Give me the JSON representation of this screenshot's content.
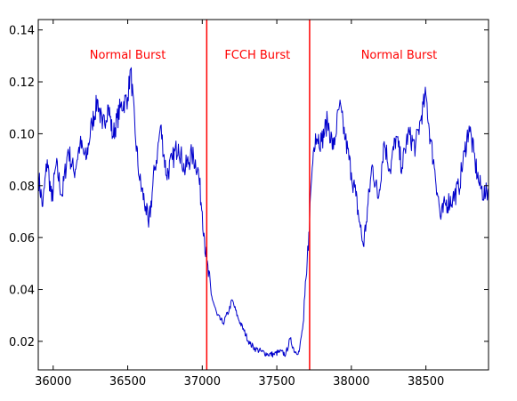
{
  "chart_data": {
    "type": "line",
    "title": "",
    "xlabel": "",
    "ylabel": "",
    "xlim": [
      35900,
      38920
    ],
    "ylim": [
      0.009,
      0.144
    ],
    "x_ticks": [
      36000,
      36500,
      37000,
      37500,
      38000,
      38500
    ],
    "x_tick_labels": [
      "36000",
      "36500",
      "37000",
      "37500",
      "38000",
      "38500"
    ],
    "y_ticks": [
      0.02,
      0.04,
      0.06,
      0.08,
      0.1,
      0.12,
      0.14
    ],
    "y_tick_labels": [
      "0.02",
      "0.04",
      "0.06",
      "0.08",
      "0.10",
      "0.12",
      "0.14"
    ],
    "grid": false,
    "line_color": "#0000cc",
    "marker_color": "#ff0000",
    "vertical_lines": [
      37030,
      37720
    ],
    "annotations": [
      {
        "text": "Normal Burst",
        "x": 36500,
        "y": 0.129
      },
      {
        "text": "FCCH Burst",
        "x": 37370,
        "y": 0.129
      },
      {
        "text": "Normal Burst",
        "x": 38320,
        "y": 0.129
      }
    ],
    "series": [
      {
        "keypoints": [
          [
            35900,
            0.084
          ],
          [
            35930,
            0.072
          ],
          [
            35960,
            0.09
          ],
          [
            35990,
            0.074
          ],
          [
            36020,
            0.088
          ],
          [
            36060,
            0.076
          ],
          [
            36100,
            0.094
          ],
          [
            36140,
            0.085
          ],
          [
            36180,
            0.096
          ],
          [
            36220,
            0.09
          ],
          [
            36260,
            0.104
          ],
          [
            36300,
            0.113
          ],
          [
            36330,
            0.102
          ],
          [
            36370,
            0.111
          ],
          [
            36400,
            0.099
          ],
          [
            36450,
            0.11
          ],
          [
            36500,
            0.114
          ],
          [
            36520,
            0.125
          ],
          [
            36550,
            0.1
          ],
          [
            36580,
            0.082
          ],
          [
            36620,
            0.072
          ],
          [
            36640,
            0.064
          ],
          [
            36680,
            0.086
          ],
          [
            36700,
            0.093
          ],
          [
            36720,
            0.103
          ],
          [
            36760,
            0.084
          ],
          [
            36800,
            0.09
          ],
          [
            36840,
            0.096
          ],
          [
            36880,
            0.086
          ],
          [
            36930,
            0.092
          ],
          [
            36970,
            0.087
          ],
          [
            37000,
            0.07
          ],
          [
            37015,
            0.06
          ],
          [
            37030,
            0.05
          ],
          [
            37060,
            0.038
          ],
          [
            37100,
            0.03
          ],
          [
            37140,
            0.027
          ],
          [
            37180,
            0.032
          ],
          [
            37200,
            0.036
          ],
          [
            37240,
            0.029
          ],
          [
            37280,
            0.024
          ],
          [
            37320,
            0.019
          ],
          [
            37360,
            0.017
          ],
          [
            37400,
            0.016
          ],
          [
            37440,
            0.015
          ],
          [
            37480,
            0.015
          ],
          [
            37520,
            0.016
          ],
          [
            37560,
            0.015
          ],
          [
            37590,
            0.021
          ],
          [
            37620,
            0.016
          ],
          [
            37650,
            0.016
          ],
          [
            37680,
            0.028
          ],
          [
            37700,
            0.046
          ],
          [
            37715,
            0.062
          ],
          [
            37730,
            0.08
          ],
          [
            37745,
            0.093
          ],
          [
            37760,
            0.1
          ],
          [
            37800,
            0.097
          ],
          [
            37840,
            0.105
          ],
          [
            37880,
            0.094
          ],
          [
            37920,
            0.111
          ],
          [
            37960,
            0.098
          ],
          [
            38000,
            0.085
          ],
          [
            38030,
            0.076
          ],
          [
            38060,
            0.064
          ],
          [
            38080,
            0.057
          ],
          [
            38100,
            0.066
          ],
          [
            38140,
            0.088
          ],
          [
            38180,
            0.075
          ],
          [
            38220,
            0.097
          ],
          [
            38260,
            0.086
          ],
          [
            38300,
            0.099
          ],
          [
            38340,
            0.087
          ],
          [
            38380,
            0.1
          ],
          [
            38430,
            0.095
          ],
          [
            38470,
            0.107
          ],
          [
            38500,
            0.115
          ],
          [
            38530,
            0.098
          ],
          [
            38560,
            0.086
          ],
          [
            38600,
            0.067
          ],
          [
            38630,
            0.073
          ],
          [
            38680,
            0.075
          ],
          [
            38720,
            0.079
          ],
          [
            38760,
            0.093
          ],
          [
            38790,
            0.103
          ],
          [
            38830,
            0.089
          ],
          [
            38860,
            0.08
          ],
          [
            38900,
            0.076
          ],
          [
            38920,
            0.079
          ]
        ]
      }
    ]
  }
}
